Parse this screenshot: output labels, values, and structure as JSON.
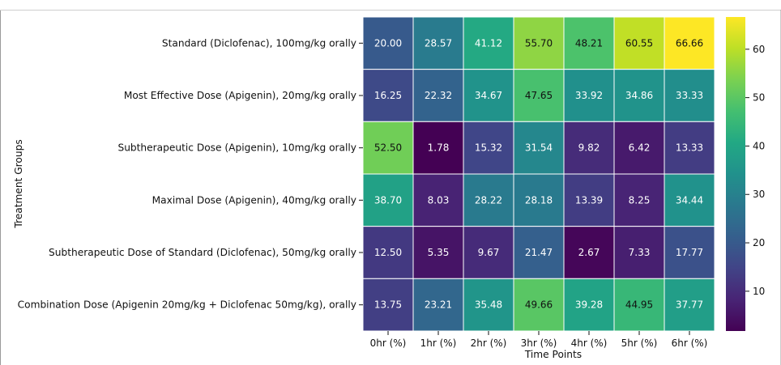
{
  "chart_data": {
    "type": "heatmap",
    "xlabel": "Time Points",
    "ylabel": "Treatment Groups",
    "columns": [
      "0hr (%)",
      "1hr (%)",
      "2hr (%)",
      "3hr (%)",
      "4hr (%)",
      "5hr (%)",
      "6hr (%)"
    ],
    "rows": [
      "Standard (Diclofenac), 100mg/kg orally",
      "Most Effective Dose (Apigenin), 20mg/kg orally",
      "Subtherapeutic Dose (Apigenin), 10mg/kg orally",
      "Maximal Dose (Apigenin), 40mg/kg orally",
      "Subtherapeutic Dose of Standard (Diclofenac), 50mg/kg orally",
      "Combination Dose (Apigenin 20mg/kg + Diclofenac 50mg/kg), orally"
    ],
    "values": [
      [
        20.0,
        28.57,
        41.12,
        55.7,
        48.21,
        60.55,
        66.66
      ],
      [
        16.25,
        22.32,
        34.67,
        47.65,
        33.92,
        34.86,
        33.33
      ],
      [
        52.5,
        1.78,
        15.32,
        31.54,
        9.82,
        6.42,
        13.33
      ],
      [
        38.7,
        8.03,
        28.22,
        28.18,
        13.39,
        8.25,
        34.44
      ],
      [
        12.5,
        5.35,
        9.67,
        21.47,
        2.67,
        7.33,
        17.77
      ],
      [
        13.75,
        23.21,
        35.48,
        49.66,
        39.28,
        44.95,
        37.77
      ]
    ],
    "value_labels": [
      [
        "20.00",
        "28.57",
        "41.12",
        "55.70",
        "48.21",
        "60.55",
        "66.66"
      ],
      [
        "16.25",
        "22.32",
        "34.67",
        "47.65",
        "33.92",
        "34.86",
        "33.33"
      ],
      [
        "52.50",
        "1.78",
        "15.32",
        "31.54",
        "9.82",
        "6.42",
        "13.33"
      ],
      [
        "38.70",
        "8.03",
        "28.22",
        "28.18",
        "13.39",
        "8.25",
        "34.44"
      ],
      [
        "12.50",
        "5.35",
        "9.67",
        "21.47",
        "2.67",
        "7.33",
        "17.77"
      ],
      [
        "13.75",
        "23.21",
        "35.48",
        "49.66",
        "39.28",
        "44.95",
        "37.77"
      ]
    ],
    "colormap": "viridis",
    "vmin": 1.78,
    "vmax": 66.66,
    "colorbar_ticks": [
      10,
      20,
      30,
      40,
      50,
      60
    ],
    "colorbar_tick_labels": [
      "10",
      "20",
      "30",
      "40",
      "50",
      "60"
    ]
  }
}
